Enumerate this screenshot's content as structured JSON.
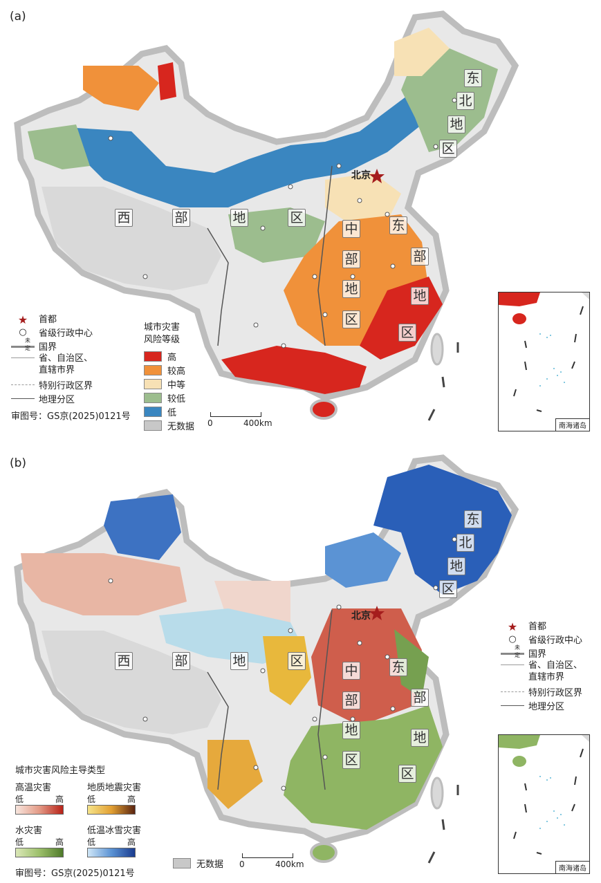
{
  "panel_a": {
    "label": "(a)",
    "capital_label": "北京",
    "regions": [
      "西",
      "部",
      "地",
      "区",
      "中",
      "部",
      "地",
      "区",
      "东",
      "部",
      "地",
      "区",
      "东",
      "北",
      "地",
      "区"
    ],
    "legend_symbols": {
      "capital": "首都",
      "provincial_center": "省级行政中心",
      "border_undetermined": "未定",
      "national_border": "国界",
      "provincial_border": "省、自治区、直辖市界",
      "sar_border": "特别行政区界",
      "geo_division": "地理分区"
    },
    "map_no": "审图号：GS京(2025)0121号",
    "risk_title_1": "城市灾害",
    "risk_title_2": "风险等级",
    "risk_levels": [
      {
        "label": "高",
        "color": "#d7261e"
      },
      {
        "label": "较高",
        "color": "#f0913a"
      },
      {
        "label": "中等",
        "color": "#f7e1b5"
      },
      {
        "label": "较低",
        "color": "#9cbd8e"
      },
      {
        "label": "低",
        "color": "#3a86c0"
      },
      {
        "label": "无数据",
        "color": "#c8c8c8"
      }
    ],
    "scale_zero": "0",
    "scale_end": "400km",
    "inset_label": "南海诸岛"
  },
  "panel_b": {
    "label": "(b)",
    "capital_label": "北京",
    "regions": [
      "西",
      "部",
      "地",
      "区",
      "中",
      "部",
      "地",
      "区",
      "东",
      "部",
      "地",
      "区",
      "东",
      "北",
      "地",
      "区"
    ],
    "legend_symbols": {
      "capital": "首都",
      "provincial_center": "省级行政中心",
      "border_undetermined": "未定",
      "national_border": "国界",
      "provincial_border": "省、自治区、直辖市界",
      "sar_border": "特别行政区界",
      "geo_division": "地理分区"
    },
    "dominant_title": "城市灾害风险主导类型",
    "hazards": [
      {
        "label": "高温灾害",
        "low": "低",
        "high": "高",
        "from": "#f8e6de",
        "to": "#b82218"
      },
      {
        "label": "地质地震灾害",
        "low": "低",
        "high": "高",
        "from": "#f6e48a",
        "to": "#5a2410"
      },
      {
        "label": "水灾害",
        "low": "低",
        "high": "高",
        "from": "#dbe8b8",
        "to": "#4f7a2a"
      },
      {
        "label": "低温冰雪灾害",
        "low": "低",
        "high": "高",
        "from": "#cfe6f7",
        "to": "#1a3b8f"
      }
    ],
    "map_no": "审图号：GS京(2025)0121号",
    "no_data": "无数据",
    "no_data_color": "#c8c8c8",
    "scale_zero": "0",
    "scale_end": "400km",
    "inset_label": "南海诸岛"
  }
}
